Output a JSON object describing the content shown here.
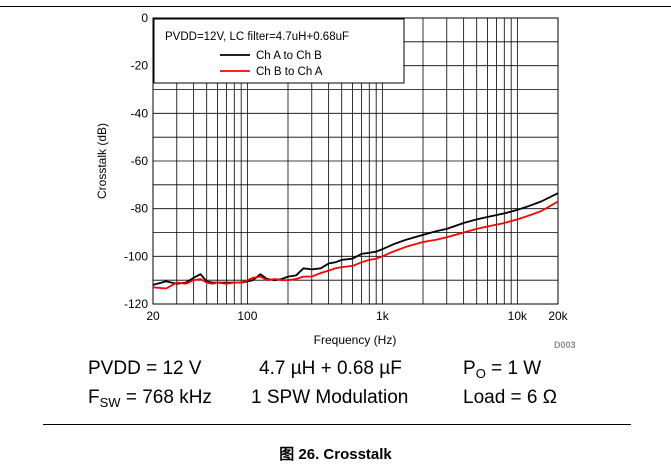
{
  "chart_data": {
    "type": "line",
    "title": "",
    "xlabel": "Frequency (Hz)",
    "ylabel": "Crosstalk (dB)",
    "xscale": "log",
    "xlim": [
      20,
      20000
    ],
    "ylim": [
      -120,
      0
    ],
    "grid": true,
    "x_ticks": [
      {
        "value": 20,
        "label": "20"
      },
      {
        "value": 100,
        "label": "100"
      },
      {
        "value": 1000,
        "label": "1k"
      },
      {
        "value": 10000,
        "label": "10k"
      },
      {
        "value": 20000,
        "label": "20k"
      }
    ],
    "y_ticks": [
      {
        "value": 0,
        "label": "0"
      },
      {
        "value": -20,
        "label": "-20"
      },
      {
        "value": -40,
        "label": "-40"
      },
      {
        "value": -60,
        "label": "-60"
      },
      {
        "value": -80,
        "label": "-80"
      },
      {
        "value": -100,
        "label": "-100"
      },
      {
        "value": -120,
        "label": "-120"
      }
    ],
    "legend": {
      "title": "PVDD=12V, LC filter=4.7uH+0.68uF",
      "placement": "top-left"
    },
    "series": [
      {
        "name": "Ch A to Ch B",
        "color": "#000000",
        "x": [
          20,
          25,
          30,
          35,
          40,
          45,
          50,
          55,
          60,
          70,
          80,
          90,
          100,
          110,
          125,
          140,
          160,
          180,
          200,
          230,
          260,
          300,
          350,
          400,
          450,
          500,
          600,
          700,
          800,
          900,
          1000,
          1200,
          1500,
          2000,
          2500,
          3000,
          4000,
          5000,
          6000,
          8000,
          10000,
          12000,
          15000,
          20000
        ],
        "y": [
          -112,
          -110.5,
          -111.5,
          -111,
          -109,
          -107.5,
          -110.5,
          -111,
          -111,
          -111,
          -111,
          -111,
          -110.5,
          -110,
          -107.5,
          -109.5,
          -110,
          -109.5,
          -108.5,
          -108,
          -105,
          -105.5,
          -105,
          -103,
          -102.5,
          -101.5,
          -101,
          -99,
          -98.5,
          -98,
          -97,
          -95,
          -93,
          -91,
          -89.5,
          -88.5,
          -86,
          -84.5,
          -83.5,
          -82,
          -80.5,
          -79,
          -77,
          -73.5
        ]
      },
      {
        "name": "Ch B to Ch A",
        "color": "#ff0000",
        "x": [
          20,
          25,
          30,
          35,
          40,
          45,
          50,
          55,
          60,
          70,
          80,
          90,
          100,
          110,
          125,
          140,
          160,
          180,
          200,
          230,
          260,
          300,
          350,
          400,
          450,
          500,
          600,
          700,
          800,
          900,
          1000,
          1200,
          1500,
          2000,
          2500,
          3000,
          4000,
          5000,
          6000,
          8000,
          10000,
          12000,
          15000,
          20000
        ],
        "y": [
          -113,
          -113.5,
          -111,
          -111.5,
          -110,
          -109.5,
          -111,
          -111.5,
          -111,
          -111.5,
          -111,
          -111,
          -110,
          -109,
          -108.5,
          -110,
          -109.5,
          -110,
          -110,
          -109.5,
          -108.5,
          -108.5,
          -107,
          -106,
          -105,
          -104.5,
          -104,
          -102.5,
          -101.5,
          -101,
          -100,
          -98,
          -96,
          -94,
          -93,
          -92,
          -90,
          -88.5,
          -87.5,
          -86,
          -84.5,
          -83,
          -81,
          -77
        ]
      }
    ]
  },
  "conditions": {
    "row1": {
      "pvdd": "PVDD = 12 V",
      "filter": "4.7 µH + 0.68 µF",
      "po_prefix": "P",
      "po_sub": "O",
      "po_suffix": " = 1 W"
    },
    "row2": {
      "fsw_prefix": "F",
      "fsw_sub": "SW",
      "fsw_suffix": " = 768 kHz",
      "modulation": "1 SPW Modulation",
      "load": "Load = 6 Ω"
    }
  },
  "logo_text": "D003",
  "caption": "图 26. Crosstalk"
}
